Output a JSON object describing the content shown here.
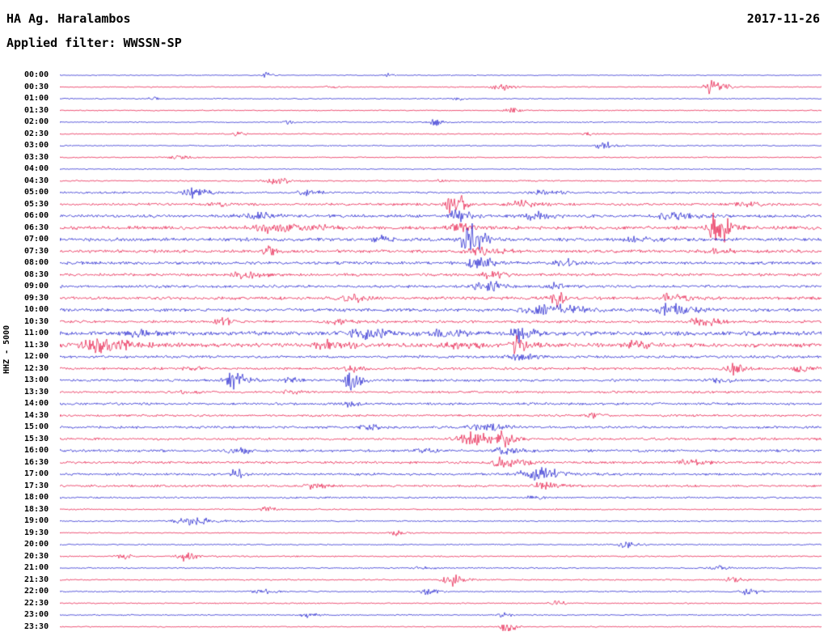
{
  "header": {
    "station": "HA Ag. Haralambos",
    "date": "2017-11-26",
    "filter": "Applied filter: WWSSN-SP"
  },
  "scale_label": "HHZ - 5000",
  "chart_data": {
    "type": "line",
    "title": "HA Ag. Haralambos",
    "subtitle": "Applied filter: WWSSN-SP",
    "date": "2017-11-26",
    "ylabel": "HHZ - 5000",
    "x_range_hours": [
      0,
      24
    ],
    "minutes_per_trace": 30,
    "trace_count": 48,
    "legend": "none",
    "grid": false,
    "colors": {
      "b": "#1414cc",
      "r": "#e50a3c"
    },
    "row_note": "rows: [time_label, color_key, background_noise_amplitude_px, events[[x_fraction, amplitude_px, width_fraction], ...]]",
    "rows": [
      [
        "00:00",
        "b",
        0.7,
        [
          [
            0.27,
            4,
            0.003
          ],
          [
            0.43,
            2,
            0.003
          ]
        ]
      ],
      [
        "00:30",
        "r",
        0.8,
        [
          [
            0.35,
            2.5,
            0.004
          ],
          [
            0.575,
            5,
            0.006
          ],
          [
            0.855,
            9,
            0.006
          ]
        ]
      ],
      [
        "01:00",
        "b",
        0.8,
        [
          [
            0.12,
            2.5,
            0.003
          ],
          [
            0.52,
            2,
            0.003
          ]
        ]
      ],
      [
        "01:30",
        "r",
        0.8,
        [
          [
            0.59,
            5,
            0.004
          ]
        ]
      ],
      [
        "02:00",
        "b",
        0.9,
        [
          [
            0.3,
            2.5,
            0.004
          ],
          [
            0.49,
            4.5,
            0.005
          ]
        ]
      ],
      [
        "02:30",
        "r",
        0.9,
        [
          [
            0.23,
            2.5,
            0.004
          ],
          [
            0.69,
            2.5,
            0.004
          ]
        ]
      ],
      [
        "03:00",
        "b",
        0.9,
        [
          [
            0.71,
            6,
            0.005
          ]
        ]
      ],
      [
        "03:30",
        "r",
        0.9,
        [
          [
            0.15,
            2.5,
            0.006
          ]
        ]
      ],
      [
        "04:00",
        "b",
        0.8,
        []
      ],
      [
        "04:30",
        "r",
        1.0,
        [
          [
            0.28,
            4,
            0.008
          ],
          [
            0.5,
            2,
            0.004
          ]
        ]
      ],
      [
        "05:00",
        "b",
        1.4,
        [
          [
            0.17,
            7,
            0.007
          ],
          [
            0.32,
            3.5,
            0.006
          ],
          [
            0.63,
            2.5,
            0.01
          ]
        ]
      ],
      [
        "05:30",
        "r",
        1.8,
        [
          [
            0.205,
            4,
            0.005
          ],
          [
            0.515,
            22,
            0.005
          ],
          [
            0.6,
            5,
            0.008
          ],
          [
            0.9,
            3,
            0.01
          ]
        ]
      ],
      [
        "06:00",
        "b",
        2.2,
        [
          [
            0.25,
            4,
            0.01
          ],
          [
            0.52,
            9,
            0.006
          ],
          [
            0.62,
            5,
            0.008
          ],
          [
            0.8,
            5,
            0.01
          ]
        ]
      ],
      [
        "06:30",
        "r",
        2.4,
        [
          [
            0.28,
            6,
            0.02
          ],
          [
            0.52,
            6,
            0.008
          ],
          [
            0.86,
            22,
            0.007
          ]
        ]
      ],
      [
        "07:00",
        "b",
        2.4,
        [
          [
            0.42,
            4,
            0.006
          ],
          [
            0.535,
            22,
            0.006
          ],
          [
            0.75,
            3,
            0.01
          ]
        ]
      ],
      [
        "07:30",
        "r",
        2.2,
        [
          [
            0.27,
            9,
            0.003
          ],
          [
            0.55,
            6,
            0.01
          ],
          [
            0.86,
            3,
            0.008
          ]
        ]
      ],
      [
        "08:00",
        "b",
        2.2,
        [
          [
            0.545,
            8,
            0.007
          ],
          [
            0.66,
            5,
            0.006
          ]
        ]
      ],
      [
        "08:30",
        "r",
        2.0,
        [
          [
            0.24,
            5,
            0.008
          ],
          [
            0.56,
            5,
            0.008
          ]
        ]
      ],
      [
        "09:00",
        "b",
        2.0,
        [
          [
            0.555,
            9,
            0.007
          ],
          [
            0.65,
            6,
            0.004
          ]
        ]
      ],
      [
        "09:30",
        "r",
        2.2,
        [
          [
            0.38,
            5,
            0.008
          ],
          [
            0.65,
            10,
            0.004
          ],
          [
            0.8,
            5,
            0.008
          ]
        ]
      ],
      [
        "10:00",
        "b",
        2.4,
        [
          [
            0.63,
            8,
            0.015
          ],
          [
            0.8,
            8,
            0.01
          ]
        ]
      ],
      [
        "10:30",
        "r",
        2.0,
        [
          [
            0.21,
            5,
            0.006
          ],
          [
            0.36,
            3,
            0.006
          ],
          [
            0.84,
            5,
            0.008
          ]
        ]
      ],
      [
        "11:00",
        "b",
        3.0,
        [
          [
            0.1,
            4,
            0.008
          ],
          [
            0.4,
            6,
            0.015
          ],
          [
            0.5,
            5,
            0.01
          ],
          [
            0.6,
            11,
            0.006
          ]
        ]
      ],
      [
        "11:30",
        "r",
        3.0,
        [
          [
            0.05,
            9,
            0.015
          ],
          [
            0.35,
            6,
            0.01
          ],
          [
            0.52,
            5,
            0.01
          ],
          [
            0.6,
            12,
            0.005
          ],
          [
            0.75,
            4,
            0.008
          ]
        ]
      ],
      [
        "12:00",
        "b",
        2.0,
        [
          [
            0.6,
            4,
            0.008
          ]
        ]
      ],
      [
        "12:30",
        "r",
        1.8,
        [
          [
            0.17,
            3,
            0.005
          ],
          [
            0.38,
            4,
            0.006
          ],
          [
            0.88,
            9,
            0.005
          ],
          [
            0.97,
            5,
            0.005
          ]
        ]
      ],
      [
        "13:00",
        "b",
        1.8,
        [
          [
            0.225,
            14,
            0.006
          ],
          [
            0.3,
            4,
            0.005
          ],
          [
            0.38,
            13,
            0.005
          ],
          [
            0.86,
            4,
            0.006
          ]
        ]
      ],
      [
        "13:30",
        "r",
        1.6,
        [
          [
            0.16,
            3,
            0.005
          ],
          [
            0.3,
            3,
            0.005
          ]
        ]
      ],
      [
        "14:00",
        "b",
        1.8,
        [
          [
            0.38,
            6,
            0.004
          ]
        ]
      ],
      [
        "14:30",
        "r",
        1.6,
        [
          [
            0.7,
            3,
            0.005
          ]
        ]
      ],
      [
        "15:00",
        "b",
        1.8,
        [
          [
            0.4,
            4,
            0.006
          ],
          [
            0.55,
            5,
            0.01
          ]
        ]
      ],
      [
        "15:30",
        "r",
        1.8,
        [
          [
            0.54,
            8,
            0.012
          ],
          [
            0.58,
            9,
            0.004
          ]
        ]
      ],
      [
        "16:00",
        "b",
        1.8,
        [
          [
            0.23,
            4,
            0.006
          ],
          [
            0.47,
            4,
            0.006
          ],
          [
            0.58,
            5,
            0.008
          ]
        ]
      ],
      [
        "16:30",
        "r",
        1.8,
        [
          [
            0.58,
            6,
            0.01
          ],
          [
            0.82,
            4,
            0.008
          ]
        ]
      ],
      [
        "17:00",
        "b",
        1.8,
        [
          [
            0.23,
            8,
            0.004
          ],
          [
            0.62,
            9,
            0.012
          ]
        ]
      ],
      [
        "17:30",
        "r",
        1.6,
        [
          [
            0.33,
            4,
            0.006
          ],
          [
            0.63,
            5,
            0.008
          ]
        ]
      ],
      [
        "18:00",
        "b",
        1.2,
        [
          [
            0.62,
            3,
            0.005
          ]
        ]
      ],
      [
        "18:30",
        "r",
        1.0,
        [
          [
            0.27,
            5,
            0.004
          ]
        ]
      ],
      [
        "19:00",
        "b",
        1.0,
        [
          [
            0.17,
            5,
            0.012
          ]
        ]
      ],
      [
        "19:30",
        "r",
        0.9,
        [
          [
            0.44,
            3,
            0.005
          ]
        ]
      ],
      [
        "20:00",
        "b",
        1.0,
        [
          [
            0.74,
            4,
            0.006
          ]
        ]
      ],
      [
        "20:30",
        "r",
        1.0,
        [
          [
            0.08,
            5,
            0.004
          ],
          [
            0.16,
            7,
            0.005
          ]
        ]
      ],
      [
        "21:00",
        "b",
        1.0,
        [
          [
            0.47,
            3,
            0.005
          ],
          [
            0.86,
            3,
            0.005
          ]
        ]
      ],
      [
        "21:30",
        "r",
        1.0,
        [
          [
            0.51,
            9,
            0.006
          ],
          [
            0.88,
            4,
            0.005
          ]
        ]
      ],
      [
        "22:00",
        "b",
        1.0,
        [
          [
            0.26,
            4,
            0.006
          ],
          [
            0.48,
            4,
            0.005
          ],
          [
            0.9,
            7,
            0.004
          ]
        ]
      ],
      [
        "22:30",
        "r",
        0.9,
        [
          [
            0.65,
            3,
            0.005
          ]
        ]
      ],
      [
        "23:00",
        "b",
        0.9,
        [
          [
            0.32,
            4,
            0.005
          ],
          [
            0.58,
            3,
            0.004
          ]
        ]
      ],
      [
        "23:30",
        "r",
        0.8,
        [
          [
            0.585,
            11,
            0.004
          ]
        ]
      ]
    ]
  }
}
